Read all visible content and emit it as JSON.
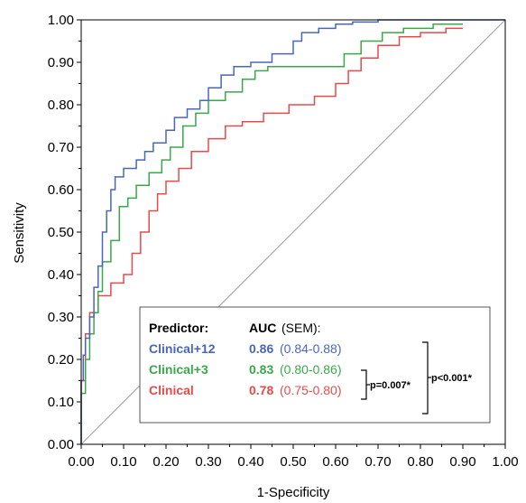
{
  "chart_data": {
    "type": "line",
    "title": "",
    "xlabel": "1-Specificity",
    "ylabel": "Sensitivity",
    "xlim": [
      0,
      1
    ],
    "ylim": [
      0,
      1
    ],
    "x_ticks": [
      "0.00",
      "0.10",
      "0.20",
      "0.30",
      "0.40",
      "0.50",
      "0.60",
      "0.70",
      "0.80",
      "0.90",
      "1.00"
    ],
    "y_ticks": [
      "0.00",
      "0.10",
      "0.20",
      "0.30",
      "0.40",
      "0.50",
      "0.60",
      "0.70",
      "0.80",
      "0.90",
      "1.00"
    ],
    "grid": false,
    "reference_line": {
      "x": [
        0,
        1
      ],
      "y": [
        0,
        1
      ],
      "color": "#a9a9a9"
    },
    "series": [
      {
        "name": "Clinical+12",
        "color": "#4a66b8",
        "x": [
          0,
          0,
          0.005,
          0.005,
          0.01,
          0.01,
          0.02,
          0.02,
          0.03,
          0.03,
          0.04,
          0.04,
          0.05,
          0.05,
          0.06,
          0.06,
          0.07,
          0.07,
          0.08,
          0.08,
          0.1,
          0.1,
          0.13,
          0.13,
          0.15,
          0.15,
          0.17,
          0.17,
          0.2,
          0.2,
          0.22,
          0.22,
          0.25,
          0.25,
          0.28,
          0.28,
          0.3,
          0.3,
          0.33,
          0.33,
          0.36,
          0.36,
          0.4,
          0.4,
          0.45,
          0.45,
          0.5,
          0.5,
          0.52,
          0.52,
          0.56,
          0.56,
          0.6,
          0.6,
          0.64,
          0.64,
          0.7,
          0.7,
          0.85,
          0.85,
          1.0
        ],
        "y": [
          0,
          0.15,
          0.15,
          0.21,
          0.21,
          0.25,
          0.25,
          0.3,
          0.3,
          0.37,
          0.37,
          0.42,
          0.42,
          0.5,
          0.5,
          0.55,
          0.55,
          0.6,
          0.6,
          0.63,
          0.63,
          0.65,
          0.65,
          0.67,
          0.67,
          0.69,
          0.69,
          0.71,
          0.71,
          0.74,
          0.74,
          0.77,
          0.77,
          0.79,
          0.79,
          0.81,
          0.81,
          0.84,
          0.84,
          0.87,
          0.87,
          0.89,
          0.89,
          0.9,
          0.9,
          0.92,
          0.92,
          0.95,
          0.95,
          0.97,
          0.97,
          0.98,
          0.98,
          0.99,
          0.99,
          0.995,
          0.995,
          1.0,
          1.0,
          1.0,
          1.0
        ]
      },
      {
        "name": "Clinical+3",
        "color": "#3aa84a",
        "x": [
          0,
          0,
          0.01,
          0.01,
          0.02,
          0.02,
          0.03,
          0.03,
          0.04,
          0.04,
          0.05,
          0.05,
          0.07,
          0.07,
          0.09,
          0.09,
          0.11,
          0.11,
          0.13,
          0.13,
          0.16,
          0.16,
          0.19,
          0.19,
          0.21,
          0.21,
          0.24,
          0.24,
          0.27,
          0.27,
          0.3,
          0.3,
          0.34,
          0.34,
          0.38,
          0.38,
          0.41,
          0.41,
          0.44,
          0.44,
          0.62,
          0.62,
          0.66,
          0.66,
          0.71,
          0.71,
          0.76,
          0.76,
          0.83,
          0.83,
          0.9
        ],
        "y": [
          0,
          0.12,
          0.12,
          0.2,
          0.2,
          0.26,
          0.26,
          0.31,
          0.31,
          0.36,
          0.36,
          0.43,
          0.43,
          0.48,
          0.48,
          0.56,
          0.56,
          0.58,
          0.58,
          0.61,
          0.61,
          0.64,
          0.64,
          0.67,
          0.67,
          0.7,
          0.7,
          0.75,
          0.75,
          0.78,
          0.78,
          0.81,
          0.81,
          0.83,
          0.83,
          0.86,
          0.86,
          0.88,
          0.88,
          0.89,
          0.89,
          0.92,
          0.92,
          0.95,
          0.95,
          0.97,
          0.97,
          0.98,
          0.98,
          0.99,
          0.99
        ]
      },
      {
        "name": "Clinical",
        "color": "#e84a4a",
        "x": [
          0,
          0,
          0.01,
          0.01,
          0.02,
          0.02,
          0.04,
          0.04,
          0.07,
          0.07,
          0.1,
          0.1,
          0.12,
          0.12,
          0.14,
          0.14,
          0.16,
          0.16,
          0.18,
          0.18,
          0.2,
          0.2,
          0.23,
          0.23,
          0.26,
          0.26,
          0.3,
          0.3,
          0.34,
          0.34,
          0.38,
          0.38,
          0.43,
          0.43,
          0.49,
          0.49,
          0.55,
          0.55,
          0.6,
          0.6,
          0.63,
          0.63,
          0.66,
          0.66,
          0.7,
          0.7,
          0.75,
          0.75,
          0.8,
          0.8,
          0.86,
          0.86,
          0.9
        ],
        "y": [
          0,
          0.15,
          0.15,
          0.26,
          0.26,
          0.31,
          0.31,
          0.35,
          0.35,
          0.38,
          0.38,
          0.4,
          0.4,
          0.45,
          0.45,
          0.5,
          0.5,
          0.55,
          0.55,
          0.59,
          0.59,
          0.62,
          0.62,
          0.65,
          0.65,
          0.69,
          0.69,
          0.72,
          0.72,
          0.75,
          0.75,
          0.76,
          0.76,
          0.78,
          0.78,
          0.8,
          0.8,
          0.82,
          0.82,
          0.85,
          0.85,
          0.88,
          0.88,
          0.91,
          0.91,
          0.94,
          0.94,
          0.96,
          0.96,
          0.97,
          0.97,
          0.98,
          0.98
        ]
      }
    ],
    "legend": {
      "placement": "bottom-right",
      "header_predictor": "Predictor:",
      "header_auc": "AUC",
      "header_sem": "(SEM):",
      "rows": [
        {
          "name": "Clinical+12",
          "auc": "0.86",
          "ci": "(0.84-0.88)",
          "color": "#4a66b8"
        },
        {
          "name": "Clinical+3",
          "auc": "0.83",
          "ci": "(0.80-0.86)",
          "color": "#3aa84a"
        },
        {
          "name": "Clinical",
          "auc": "0.78",
          "ci": "(0.75-0.80)",
          "color": "#e84a4a"
        }
      ],
      "p_inner": "p=0.007*",
      "p_outer": "p<0.001*"
    }
  }
}
